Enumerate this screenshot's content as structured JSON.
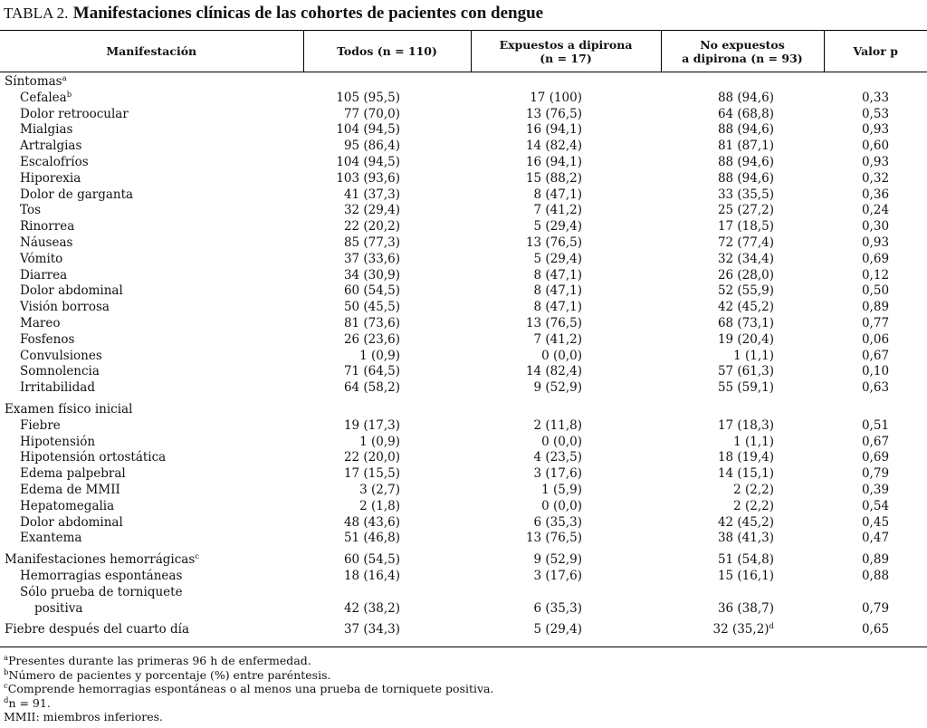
{
  "title": {
    "label": "TABLA 2.",
    "text": "Manifestaciones clínicas de las cohortes de pacientes con dengue"
  },
  "table": {
    "headers": [
      [
        "Manifestación"
      ],
      [
        "Todos (n = 110)"
      ],
      [
        "Expuestos a dipirona",
        "(n = 17)"
      ],
      [
        "No expuestos",
        "a dipirona (n = 93)"
      ],
      [
        "Valor p"
      ]
    ],
    "sections": [
      {
        "label": [
          "Síntomas"
        ],
        "sup": "a",
        "rows": [
          {
            "label": [
              "Cefalea"
            ],
            "sup": "b",
            "cells": [
              "105 (95,5)",
              "17 (100)",
              "88 (94,6)",
              "0,33"
            ]
          },
          {
            "label": [
              "Dolor retroocular"
            ],
            "cells": [
              "77 (70,0)",
              "13 (76,5)",
              "64 (68,8)",
              "0,53"
            ]
          },
          {
            "label": [
              "Mialgias"
            ],
            "cells": [
              "104 (94,5)",
              "16 (94,1)",
              "88 (94,6)",
              "0,93"
            ]
          },
          {
            "label": [
              "Artralgias"
            ],
            "cells": [
              "95 (86,4)",
              "14 (82,4)",
              "81 (87,1)",
              "0,60"
            ]
          },
          {
            "label": [
              "Escalofríos"
            ],
            "cells": [
              "104 (94,5)",
              "16 (94,1)",
              "88 (94,6)",
              "0,93"
            ]
          },
          {
            "label": [
              "Hiporexia"
            ],
            "cells": [
              "103 (93,6)",
              "15 (88,2)",
              "88 (94,6)",
              "0,32"
            ]
          },
          {
            "label": [
              "Dolor de garganta"
            ],
            "cells": [
              "41 (37,3)",
              "8 (47,1)",
              "33 (35,5)",
              "0,36"
            ]
          },
          {
            "label": [
              "Tos"
            ],
            "cells": [
              "32 (29,4)",
              "7 (41,2)",
              "25 (27,2)",
              "0,24"
            ]
          },
          {
            "label": [
              "Rinorrea"
            ],
            "cells": [
              "22 (20,2)",
              "5 (29,4)",
              "17 (18,5)",
              "0,30"
            ]
          },
          {
            "label": [
              "Náuseas"
            ],
            "cells": [
              "85 (77,3)",
              "13 (76,5)",
              "72 (77,4)",
              "0,93"
            ]
          },
          {
            "label": [
              "Vómito"
            ],
            "cells": [
              "37 (33,6)",
              "5 (29,4)",
              "32 (34,4)",
              "0,69"
            ]
          },
          {
            "label": [
              "Diarrea"
            ],
            "cells": [
              "34 (30,9)",
              "8 (47,1)",
              "26 (28,0)",
              "0,12"
            ]
          },
          {
            "label": [
              "Dolor abdominal"
            ],
            "cells": [
              "60 (54,5)",
              "8 (47,1)",
              "52 (55,9)",
              "0,50"
            ]
          },
          {
            "label": [
              "Visión borrosa"
            ],
            "cells": [
              "50 (45,5)",
              "8 (47,1)",
              "42 (45,2)",
              "0,89"
            ]
          },
          {
            "label": [
              "Mareo"
            ],
            "cells": [
              "81 (73,6)",
              "13 (76,5)",
              "68 (73,1)",
              "0,77"
            ]
          },
          {
            "label": [
              "Fosfenos"
            ],
            "cells": [
              "26 (23,6)",
              "7 (41,2)",
              "19 (20,4)",
              "0,06"
            ]
          },
          {
            "label": [
              "Convulsiones"
            ],
            "cells": [
              "1 (0,9)",
              "0 (0,0)",
              "1 (1,1)",
              "0,67"
            ]
          },
          {
            "label": [
              "Somnolencia"
            ],
            "cells": [
              "71 (64,5)",
              "14 (82,4)",
              "57 (61,3)",
              "0,10"
            ]
          },
          {
            "label": [
              "Irritabilidad"
            ],
            "cells": [
              "64 (58,2)",
              "9 (52,9)",
              "55 (59,1)",
              "0,63"
            ]
          }
        ]
      },
      {
        "label": [
          "Examen físico inicial"
        ],
        "rows": [
          {
            "label": [
              "Fiebre"
            ],
            "cells": [
              "19 (17,3)",
              "2 (11,8)",
              "17 (18,3)",
              "0,51"
            ]
          },
          {
            "label": [
              "Hipotensión"
            ],
            "cells": [
              "1 (0,9)",
              "0 (0,0)",
              "1 (1,1)",
              "0,67"
            ]
          },
          {
            "label": [
              "Hipotensión ortostática"
            ],
            "cells": [
              "22 (20,0)",
              "4 (23,5)",
              "18 (19,4)",
              "0,69"
            ]
          },
          {
            "label": [
              "Edema palpebral"
            ],
            "cells": [
              "17 (15,5)",
              "3 (17,6)",
              "14 (15,1)",
              "0,79"
            ]
          },
          {
            "label": [
              "Edema de MMII"
            ],
            "cells": [
              "3 (2,7)",
              "1 (5,9)",
              "2 (2,2)",
              "0,39"
            ]
          },
          {
            "label": [
              "Hepatomegalia"
            ],
            "cells": [
              "2 (1,8)",
              "0 (0,0)",
              "2 (2,2)",
              "0,54"
            ]
          },
          {
            "label": [
              "Dolor abdominal"
            ],
            "cells": [
              "48 (43,6)",
              "6 (35,3)",
              "42 (45,2)",
              "0,45"
            ]
          },
          {
            "label": [
              "Exantema"
            ],
            "cells": [
              "51 (46,8)",
              "13 (76,5)",
              "38 (41,3)",
              "0,47"
            ]
          }
        ]
      },
      {
        "label": [
          "Manifestaciones hemorrágicas"
        ],
        "sup": "c",
        "cells": [
          "60 (54,5)",
          "9 (52,9)",
          "51 (54,8)",
          "0,89"
        ],
        "rows": [
          {
            "label": [
              "Hemorragias espontáneas"
            ],
            "cells": [
              "18 (16,4)",
              "3 (17,6)",
              "15 (16,1)",
              "0,88"
            ]
          },
          {
            "label": [
              "Sólo prueba de torniquete",
              "positiva"
            ],
            "cells": [
              "42 (38,2)",
              "6 (35,3)",
              "36 (38,7)",
              "0,79"
            ]
          }
        ]
      },
      {
        "label": [
          "Fiebre después del cuarto día"
        ],
        "cells": [
          "37 (34,3)",
          "5 (29,4)",
          {
            "text": "32 (35,2)",
            "sup": "d"
          },
          "0,65"
        ]
      }
    ]
  },
  "footnotes": [
    {
      "sup": "a",
      "text": "Presentes durante las primeras 96 h de enfermedad."
    },
    {
      "sup": "b",
      "text": "Número de pacientes y porcentaje (%) entre paréntesis."
    },
    {
      "sup": "c",
      "text": "Comprende hemorragias espontáneas o al menos una prueba de torniquete positiva."
    },
    {
      "sup": "d",
      "text": "n = 91."
    },
    {
      "text": "MMII: miembros inferiores."
    }
  ]
}
